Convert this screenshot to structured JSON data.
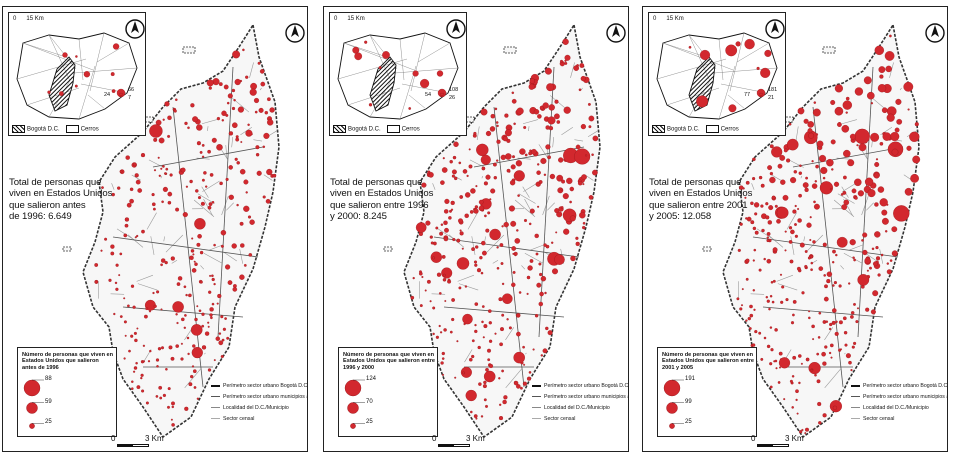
{
  "colors": {
    "dot": "#d2282e",
    "dot_stroke": "#8e1216",
    "boundary": "#333333",
    "sector": "#9a9a9a"
  },
  "panels": [
    {
      "title": "Total de personas que viven en Estados Unidos que salieron antes de 1996: 6.649",
      "title_lines": [
        "Total de personas que",
        "viven en Estados Unidos",
        "que salieron antes",
        "de 1996: 6.649"
      ],
      "total": 6649,
      "legend_title": "Número de personas que viven en Estados Unidos que salieron antes de 1996",
      "legend_values": [
        "88",
        "59",
        "25"
      ],
      "inset_values": [
        "24",
        "66",
        "7"
      ],
      "density": 0.55
    },
    {
      "title": "Total de personas que viven en Estados Unidos que salieron entre 1996 y 2000: 8.245",
      "title_lines": [
        "Total de personas que",
        "viven en Estados Unidos",
        "que salieron entre 1996",
        "y 2000: 8.245"
      ],
      "total": 8245,
      "legend_title": "Número de personas que viven en Estados Unidos que salieron entre 1996 y 2000",
      "legend_values": [
        "124",
        "70",
        "25"
      ],
      "inset_values": [
        "54",
        "108",
        "26"
      ],
      "density": 0.75
    },
    {
      "title": "Total de personas que viven en Estados Unidos que salieron entre 2001 y 2005: 12.058",
      "title_lines": [
        "Total de personas que",
        "viven en Estados Unidos",
        "que salieron entre 2001",
        "y 2005: 12.058"
      ],
      "total": 12058,
      "legend_title": "Número de personas que viven en Estados Unidos que salieron entre 2001 y 2005",
      "legend_values": [
        "191",
        "99",
        "25"
      ],
      "inset_values": [
        "77",
        "181",
        "21"
      ],
      "density": 1.0
    }
  ],
  "inset": {
    "scale_zero": "0",
    "scale_label": "15 Km",
    "legend_bogota": "Bogotá D.C.",
    "legend_cerros": "Cerros"
  },
  "key": {
    "items": [
      "Perímetro sector urbano Bogotá D.C.",
      "Perímetro sector urbano municipios aledaños",
      "Localidad del D.C./Municipio",
      "Sector censal"
    ]
  },
  "scale": {
    "zero": "0",
    "label": "3 Km"
  },
  "north_label": "N"
}
